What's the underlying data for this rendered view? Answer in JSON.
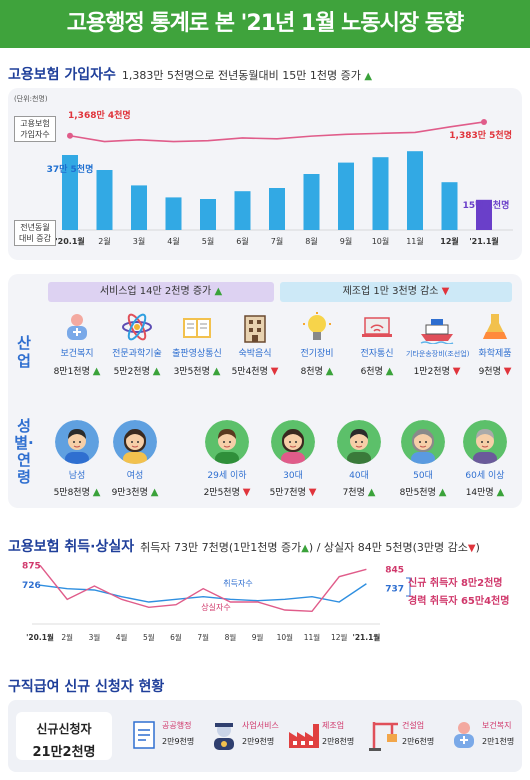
{
  "title": "고용행정 통계로 본 '21년 1월 노동시장 동향",
  "section1": {
    "heading": "고용보험 가입자수",
    "summary": "1,383만 5천명으로 전년동월대비 15만 1천명 증가",
    "unit": "(단위:천명)",
    "line_label": "고용보험 가입자수",
    "bar_label": "전년동월 대비 증감",
    "first_value_label": "1,368만 4천명",
    "last_value_label": "1,383만 5천명",
    "first_bar_label": "37만 5천명",
    "last_bar_label": "15만 1천명"
  },
  "section2": {
    "service_pill": "서비스업 14만 2천명 증가",
    "manufacturing_pill": "제조업 1만 3천명 감소",
    "industry_label": "산업",
    "gender_age_label": "성별·연령",
    "industries": [
      {
        "name": "보건복지",
        "value": "8만1천명",
        "trend": "up",
        "icon": "healthcare-icon"
      },
      {
        "name": "전문과학기술",
        "value": "5만2천명",
        "trend": "up",
        "icon": "atom-icon"
      },
      {
        "name": "출판영상통신",
        "value": "3만5천명",
        "trend": "up",
        "icon": "book-icon"
      },
      {
        "name": "숙박음식",
        "value": "5만4천명",
        "trend": "down",
        "icon": "building-icon"
      },
      {
        "name": "전기장비",
        "value": "8천명",
        "trend": "up",
        "icon": "lightbulb-icon"
      },
      {
        "name": "전자통신",
        "value": "6천명",
        "trend": "up",
        "icon": "wifi-laptop-icon"
      },
      {
        "name": "기타운송장비(조선업)",
        "value": "1만2천명",
        "trend": "down",
        "icon": "ship-icon"
      },
      {
        "name": "화학제품",
        "value": "9천명",
        "trend": "down",
        "icon": "flask-icon"
      }
    ],
    "people": [
      {
        "name": "남성",
        "value": "5만8천명",
        "trend": "up",
        "icon": "man-icon"
      },
      {
        "name": "여성",
        "value": "9만3천명",
        "trend": "up",
        "icon": "woman-icon"
      },
      {
        "name": "29세 이하",
        "value": "2만5천명",
        "trend": "down",
        "icon": "young-man-icon"
      },
      {
        "name": "30대",
        "value": "5만7천명",
        "trend": "down",
        "icon": "thirties-woman-icon"
      },
      {
        "name": "40대",
        "value": "7천명",
        "trend": "up",
        "icon": "forties-man-icon"
      },
      {
        "name": "50대",
        "value": "8만5천명",
        "trend": "up",
        "icon": "fifties-woman-icon"
      },
      {
        "name": "60세 이상",
        "value": "14만명",
        "trend": "up",
        "icon": "senior-man-icon"
      }
    ]
  },
  "section3": {
    "heading": "고용보험 취득·상실자",
    "summary_a": "취득자 73만 7천명(1만1천명 증가",
    "summary_b": ") / 상실자 84만 5천명(3만명 감소",
    "summary_c": ")",
    "acq_series_label": "취득자수",
    "loss_series_label": "상실자수",
    "first_acq_label": "726",
    "first_loss_label": "875",
    "last_acq_label": "737",
    "last_loss_label": "845",
    "legend_new": "신규 취득자 8만2천명",
    "legend_exp": "경력 취득자 65만4천명"
  },
  "section4": {
    "heading": "구직급여 신규 신청자 현황",
    "total_label": "신규신청자",
    "total_value": "21만2천명",
    "items": [
      {
        "name": "공공행정",
        "value": "2만9천명",
        "icon": "document-icon"
      },
      {
        "name": "사업서비스",
        "value": "2만9천명",
        "icon": "worker-icon"
      },
      {
        "name": "제조업",
        "value": "2만8천명",
        "icon": "factory-icon"
      },
      {
        "name": "건설업",
        "value": "2만6천명",
        "icon": "crane-icon"
      },
      {
        "name": "보건복지",
        "value": "2만1천명",
        "icon": "healthcare-icon"
      }
    ]
  },
  "chart_data": [
    {
      "type": "bar",
      "title": "고용보험 가입자수",
      "categories": [
        "'20.1월",
        "2월",
        "3월",
        "4월",
        "5월",
        "6월",
        "7월",
        "8월",
        "9월",
        "10월",
        "11월",
        "12월",
        "'21.1월"
      ],
      "series": [
        {
          "name": "전년동월 대비 증감",
          "values": [
            375,
            300,
            223,
            163,
            155,
            194,
            210,
            280,
            337,
            364,
            394,
            239,
            151
          ]
        },
        {
          "name": "고용보험 가입자수",
          "values": [
            13684,
            13620,
            13640,
            13620,
            13630,
            13660,
            13650,
            13680,
            13700,
            13710,
            13720,
            13780,
            13835
          ]
        }
      ],
      "colors": {
        "bar": "#32a9e4",
        "bar_last": "#6a3fc9",
        "line": "#e05c8a"
      }
    },
    {
      "type": "line",
      "title": "고용보험 취득·상실자",
      "categories": [
        "'20.1월",
        "2월",
        "3월",
        "4월",
        "5월",
        "6월",
        "7월",
        "8월",
        "9월",
        "10월",
        "11월",
        "12월",
        "'21.1월"
      ],
      "series": [
        {
          "name": "취득자수",
          "values": [
            726,
            700,
            690,
            640,
            600,
            620,
            640,
            620,
            610,
            620,
            640,
            600,
            737
          ]
        },
        {
          "name": "상실자수",
          "values": [
            875,
            620,
            720,
            620,
            560,
            580,
            700,
            600,
            600,
            540,
            530,
            790,
            845
          ]
        }
      ],
      "colors": {
        "acq": "#2f8fe0",
        "loss": "#e05c8a"
      }
    }
  ],
  "colors": {
    "title_bg": "#3fa33c",
    "heading": "#1f3f9a",
    "up": "#3aa23a",
    "down": "#e0343c",
    "accent_blue": "#2f6fd0"
  }
}
